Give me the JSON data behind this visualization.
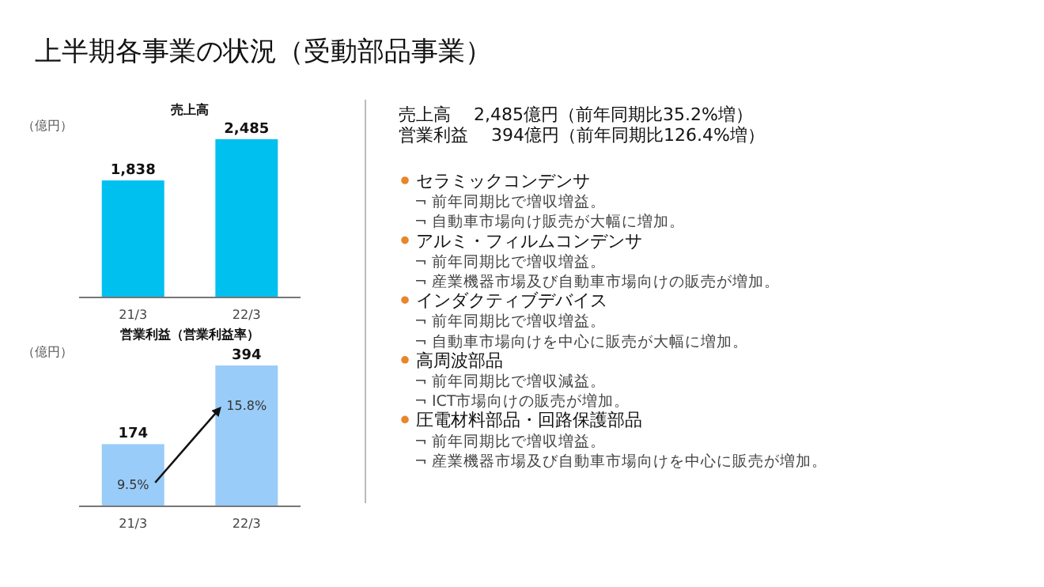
{
  "chart_data": [
    {
      "type": "other",
      "title": "上半期各事業の状況（受動部品事業）",
      "annotations": [
        "売上高　 2,485億円（前年同期比35.2%増）",
        "営業利益　 394億円（前年同期比126.4%増）",
        "セラミックコンデンサ",
        "¬ 前年同期比で増収増益。",
        "¬ 自動車市場向け販売が大幅に増加。",
        "アルミ・フィルムコンデンサ",
        "¬ 前年同期比で増収増益。",
        "¬ 産業機器市場及び自動車市場向けの販売が増加。",
        "インダクティブデバイス",
        "¬ 前年同期比で増収増益。",
        "¬ 自動車市場向けを中心に販売が大幅に増加。",
        "高周波部品",
        "¬ 前年同期比で増収減益。",
        "¬ ICT市場向けの販売が増加。",
        "圧電材料部品・回路保護部品",
        "¬ 前年同期比で増収増益。",
        "¬ 産業機器市場及び自動車市場向けを中心に販売が増加。"
      ]
    },
    {
      "type": "bar",
      "title": "売上高",
      "ylabel": "（億円）",
      "categories": [
        "21/3",
        "22/3"
      ],
      "values": [
        1838,
        2485
      ],
      "value_labels": [
        "1,838",
        "2,485"
      ],
      "color": "#00c0f0"
    },
    {
      "type": "bar",
      "title": "営業利益（営業利益率）",
      "ylabel": "（億円）",
      "categories": [
        "21/3",
        "22/3"
      ],
      "values": [
        174,
        394
      ],
      "color": "#99ccf8",
      "data_labels": true,
      "annotations": [
        "9.5%",
        "15.8%"
      ]
    }
  ]
}
